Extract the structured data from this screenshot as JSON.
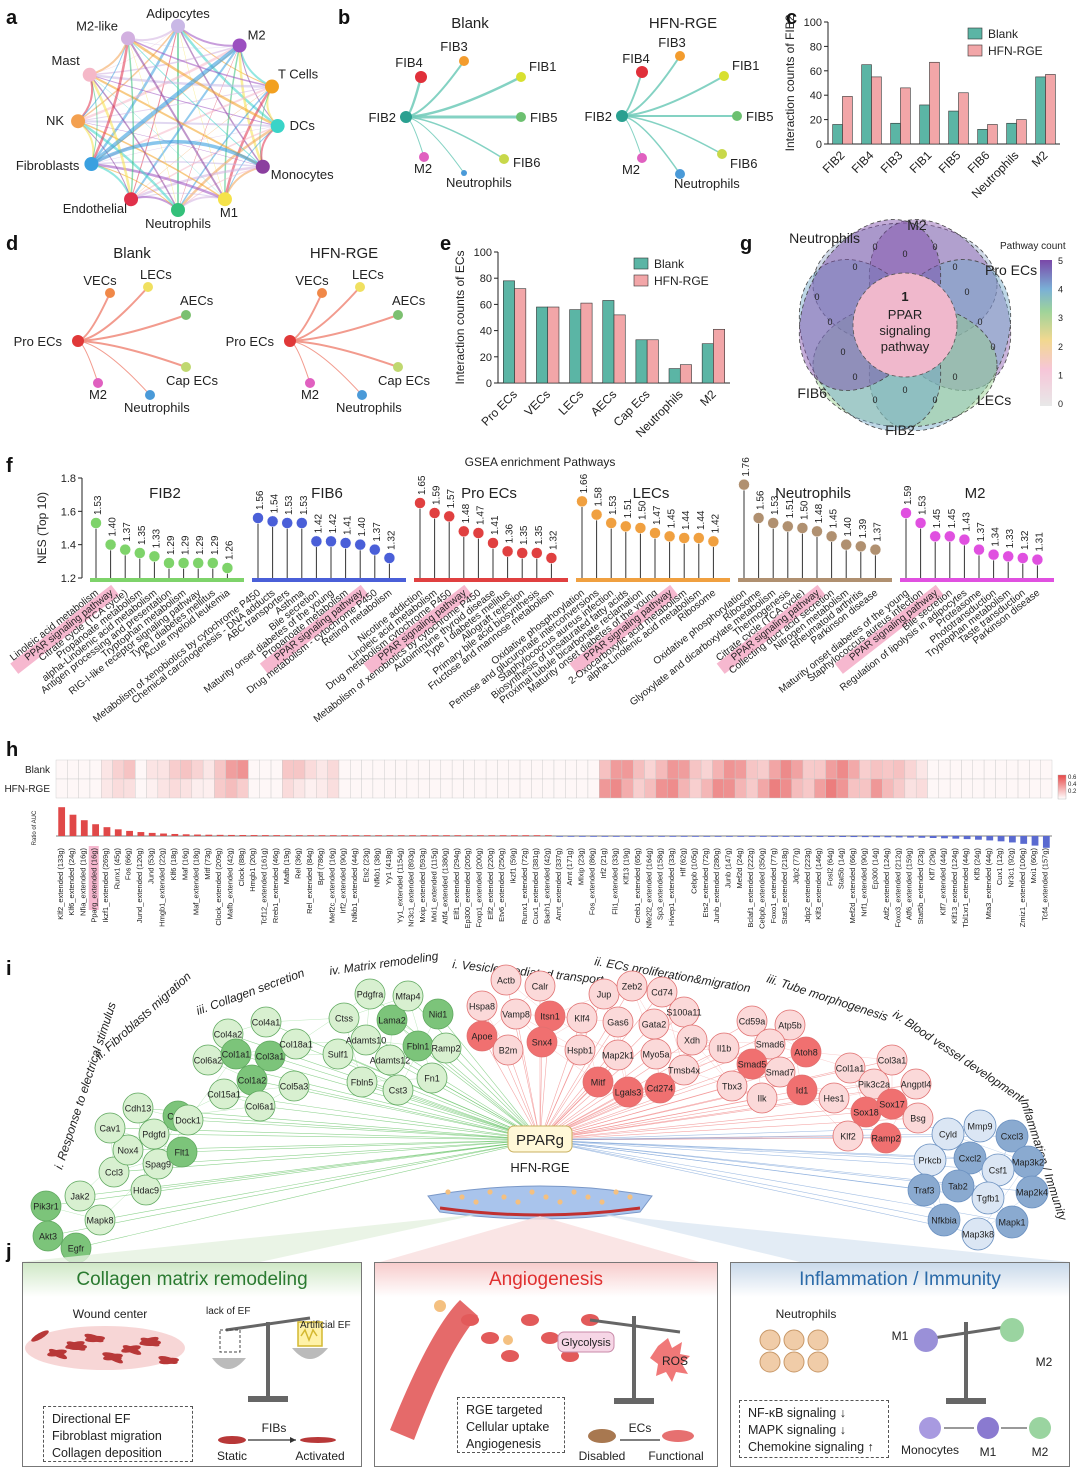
{
  "panels": {
    "a": "a",
    "b": "b",
    "c": "c",
    "d": "d",
    "e": "e",
    "f": "f",
    "g": "g",
    "h": "h",
    "i": "i",
    "j": "j"
  },
  "panel_a": {
    "nodes": [
      "Adipocytes",
      "M2",
      "T Cells",
      "DCs",
      "Monocytes",
      "M1",
      "Neutrophils",
      "Endothelial",
      "Fibroblasts",
      "NK",
      "Mast",
      "M2-like"
    ],
    "colors": [
      "#c9b8e6",
      "#9b4fc0",
      "#f2a020",
      "#3ad4c8",
      "#8b3f9f",
      "#f5e24a",
      "#34c07a",
      "#e0304a",
      "#3aa0e0",
      "#f3a050",
      "#f5b8c8",
      "#d2b0e0"
    ]
  },
  "panel_b": {
    "blank_title": "Blank",
    "hfn_title": "HFN-RGE",
    "source": "FIB2",
    "targets": [
      "FIB3",
      "FIB4",
      "FIB1",
      "FIB5",
      "FIB6",
      "M2",
      "Neutrophils"
    ],
    "target_colors": [
      "#f39c2e",
      "#e0303a",
      "#d8e030",
      "#6cc070",
      "#c8d84a",
      "#e060c0",
      "#4a9ad8"
    ]
  },
  "panel_d": {
    "blank_title": "Blank",
    "hfn_title": "HFN-RGE",
    "source": "Pro ECs",
    "targets": [
      "VECs",
      "LECs",
      "AECs",
      "Cap ECs",
      "M2",
      "Neutrophils"
    ],
    "target_colors": [
      "#f08848",
      "#f0e060",
      "#7cc070",
      "#c0d870",
      "#e060c0",
      "#4a9ad8"
    ]
  },
  "chart_data": [
    {
      "id": "c",
      "type": "bar",
      "ylabel": "Interaction counts of FIB2",
      "ylim": [
        0,
        100
      ],
      "yticks": [
        0,
        20,
        40,
        60,
        80,
        100
      ],
      "categories": [
        "FIB2",
        "FIB4",
        "FIB3",
        "FIB1",
        "FIB5",
        "FIB6",
        "Neutrophils",
        "M2"
      ],
      "series": [
        {
          "name": "Blank",
          "color": "#5bb5a5",
          "values": [
            16,
            65,
            17,
            32,
            27,
            12,
            17,
            55
          ]
        },
        {
          "name": "HFN-RGE",
          "color": "#f2a6a8",
          "values": [
            39,
            55,
            46,
            67,
            42,
            16,
            20,
            57
          ]
        }
      ],
      "legend": "top-right"
    },
    {
      "id": "e",
      "type": "bar",
      "ylabel": "Interaction counts of ECs",
      "ylim": [
        0,
        100
      ],
      "yticks": [
        0,
        20,
        40,
        60,
        80,
        100
      ],
      "categories": [
        "Pro ECs",
        "VECs",
        "LECs",
        "AECs",
        "Cap Ecs",
        "Neutrophils",
        "M2"
      ],
      "series": [
        {
          "name": "Blank",
          "color": "#5bb5a5",
          "values": [
            78,
            58,
            56,
            63,
            33,
            11,
            30
          ]
        },
        {
          "name": "HFN-RGE",
          "color": "#f2a6a8",
          "values": [
            72,
            58,
            61,
            52,
            33,
            14,
            41
          ]
        }
      ],
      "legend": "top-right"
    },
    {
      "id": "f",
      "type": "lollipop",
      "title": "GSEA enrichment Pathways",
      "ylabel": "NES (Top 10)",
      "ylim": [
        1.2,
        1.8
      ],
      "yticks": [
        "1.2",
        "1.4",
        "1.6",
        "1.8"
      ],
      "groups": [
        {
          "name": "FIB2",
          "color": "#7ed36a",
          "values": [
            1.53,
            1.4,
            1.37,
            1.35,
            1.33,
            1.29,
            1.29,
            1.29,
            1.29,
            1.26
          ],
          "pathways": [
            "Linoleic acid metabolism",
            "PPAR signaling pathway",
            "Citrate cycle (TCA cycle)",
            "Propanoate metabolism",
            "alpha-Linolenic acid metabolism",
            "Antigen processing and presentation",
            "Tryptophan metabolism",
            "RIG-I-like receptor signaling pathway",
            "Type I diabetes mellitus",
            "Acute myeloid leukemia"
          ]
        },
        {
          "name": "FIB6",
          "color": "#4a5fd8",
          "values": [
            1.56,
            1.54,
            1.53,
            1.53,
            1.42,
            1.42,
            1.41,
            1.4,
            1.37,
            1.32
          ],
          "pathways": [
            "Metabolism of xenobiotics by cytochrome P450",
            "Chemical carcinogenesis - DNA adducts",
            "ABC transporters",
            "Asthma",
            "Bile secretion",
            "Maturity onset diabetes of the young",
            "Propanoate metabolism",
            "PPAR signaling pathway",
            "Drug metabolism - cytochrome P450",
            "Retinol metabolism"
          ]
        },
        {
          "name": "Pro ECs",
          "color": "#e04040",
          "values": [
            1.65,
            1.59,
            1.57,
            1.48,
            1.47,
            1.41,
            1.36,
            1.35,
            1.35,
            1.32
          ],
          "pathways": [
            "Nicotine addiction",
            "Linoleic acid metabolism",
            "Drug metabolism cytochrome P450",
            "PPAR signaling pathway",
            "Metabolism of xenobiotics by cytochrome P450",
            "Autoimmune thyroid disease",
            "Type I diabetes mellitus",
            "Allograft rejection",
            "Primary bile acid biosynthesis",
            "Fructose and mannose metabolism"
          ]
        },
        {
          "name": "LECs",
          "color": "#f0a040",
          "values": [
            1.66,
            1.58,
            1.53,
            1.51,
            1.5,
            1.47,
            1.45,
            1.44,
            1.44,
            1.42
          ],
          "pathways": [
            "Oxidative phosphorylation",
            "Pentose and glucuronate interconversions",
            "Staphylococcus aureus infection",
            "Biosynthesis of unsaturated fatty acids",
            "Proximal tubule bicarbonate reclamation",
            "Maturity onset diabetes of the young",
            "PPAR signaling pathway",
            "2-Oxocarboxylic acid metabolism",
            "alpha-Linolenic acid metabolism",
            "Ribosome"
          ]
        },
        {
          "name": "Neutrophils",
          "color": "#b09070",
          "values": [
            1.76,
            1.56,
            1.53,
            1.51,
            1.5,
            1.48,
            1.45,
            1.4,
            1.39,
            1.37
          ],
          "pathways": [
            "Oxidative phosphorylation",
            "Ribosome",
            "Glyoxylate and dicarboxylate metabolism",
            "Thermogenesis",
            "Citrate cycle (TCA cycle)",
            "PPAR signaling pathway",
            "Collecting duct acid secretion",
            "Nitrogen metabolism",
            "Rheumatoid arthritis",
            "Parkinson disease"
          ]
        },
        {
          "name": "M2",
          "color": "#e050e0",
          "values": [
            1.59,
            1.53,
            1.45,
            1.45,
            1.43,
            1.37,
            1.34,
            1.33,
            1.32,
            1.31
          ],
          "pathways": [
            "Maturity onset diabetes of the young",
            "Staphylococcus aureus infection",
            "PPAR signaling pathway",
            "Bile secretion",
            "Regulation of lipolysis in adipocytes",
            "Proteasome",
            "Phototransduction",
            "Tryptophan metabolism",
            "Taste transduction",
            "Parkinson disease"
          ]
        }
      ]
    },
    {
      "id": "h",
      "type": "heatmap",
      "rows": [
        "Blank",
        "HFN-RGE"
      ],
      "bar_ylabel": "Ratio of AUC",
      "legend_ticks": [
        "0.6",
        "0.4",
        "0.2"
      ],
      "columns": [
        "Klf2_extended (133g)",
        "Klf6_extended (24g)",
        "Nfia_extended (16g)",
        "Pparg_extended (16g)",
        "Ikzf1_extended (269g)",
        "Runx1 (45g)",
        "Fos (66g)",
        "Jund_extended (120g)",
        "Jund (53g)",
        "Hmgb1_extended (22g)",
        "Klf6 (18g)",
        "Maf (16g)",
        "Maf_extended (18g)",
        "Mitf (73g)",
        "Clock_extended (209g)",
        "Mafb_extended (42g)",
        "Clock (88g)",
        "Hmgb1 (20g)",
        "Tcf12_extended (161g)",
        "Rreb1_extended (46g)",
        "Mafb (19g)",
        "Rel (36g)",
        "Rel_extended (84g)",
        "Bptf (786g)",
        "Mef2c_extended (16g)",
        "Irf2_extended (90g)",
        "Nfkb1_extended (44g)",
        "Ets2 (23g)",
        "Nfkb1 (38g)",
        "Yy1 (418g)",
        "Yy1_extended (1154g)",
        "Nr3c1_extended (893g)",
        "Mxip_extended (593g)",
        "Mxi1_extended (115g)",
        "Atf4_extended (1380g)",
        "Elf1_extended (294g)",
        "Ep300_extended (205g)",
        "Foxp1_extended (200g)",
        "Elf2_extended (220g)",
        "Etv6_extended (250g)",
        "Ikzf1 (59g)",
        "Runx1_extended (72g)",
        "Cux1_extended (381g)",
        "Bach1_extended (42g)",
        "Arnt_extended (337g)",
        "Arnt (171g)",
        "Mlxip (23g)",
        "Fos_extended (86g)",
        "Irf2 (21g)",
        "Fli1_extended (33g)",
        "Klf13 (19g)",
        "Creb1_extended (65g)",
        "Nfe2l2_extended (164g)",
        "Sp3_extended (158g)",
        "Hivep1_extended (33g)",
        "Hlf (62g)",
        "Cebpb (105g)",
        "Ets2_extended (72g)",
        "Junb_extended (280g)",
        "Junb (147g)",
        "Mef2d (24g)",
        "Bclaf1_extended (222g)",
        "Cebpb_extended (350g)",
        "Foxo1_extended (77g)",
        "Stat3_extended (218g)",
        "Jdp2 (77g)",
        "Jdp2_extended (223g)",
        "Klf3_extended (146g)",
        "Fosl2 (64g)",
        "Stat5b (14g)",
        "Mef2d_extended (66g)",
        "Nrf1_extended (90g)",
        "Ep300 (14g)",
        "Atf2_extended (124g)",
        "Foxo3_extended (212g)",
        "Atf6_extended (159g)",
        "Stat5b_extended (23g)",
        "Klf7 (29g)",
        "Klf7_extended (44g)",
        "Klf13_extended (124g)",
        "Tbl1xr1_extended (44g)",
        "Klf3 (24g)",
        "Mta3_extended (44g)",
        "Cux1 (12g)",
        "Nr3c1 (92g)",
        "Zmiz1_extended (106g)",
        "Mxi1 (60g)",
        "Tcf4_extended (157g)"
      ],
      "highlight": "Pparg_extended (16g)"
    }
  ],
  "panel_g": {
    "sets": [
      "M2",
      "Pro ECs",
      "LECs",
      "FIB2",
      "FIB6",
      "Neutrophils"
    ],
    "colors": [
      "#9aaecc",
      "#8a58b0",
      "#6fa6c8",
      "#92cf8a",
      "#6fa6c8",
      "#7a48a8"
    ],
    "center_count": "1",
    "center_text": [
      "PPAR",
      "signaling",
      "pathway"
    ],
    "legend_title": "Pathway count",
    "legend_ticks": [
      "5",
      "4",
      "3",
      "2",
      "1",
      "0"
    ]
  },
  "panel_i": {
    "center": "PPARg",
    "material": "HFN-RGE",
    "categories_green": [
      "i. Response to electrical stimulus",
      "ii. Fibroblasts migration",
      "iii. Collagen secretion",
      "iv. Matrix remodeling"
    ],
    "categories_red": [
      "i. Vesicle-mediated transport",
      "ii. ECs proliferation&migration",
      "iii. Tube morphogenesis",
      "iv. Blood vessel development"
    ],
    "category_blue": "Inflammation / Immunity",
    "green_genes": [
      "Pik3r1",
      "Akt3",
      "Egfr",
      "Jak2",
      "Mapk8",
      "Ccl3",
      "Hdac9",
      "Nox4",
      "Spag9",
      "Cav1",
      "Cdh13",
      "Pdgfd",
      "Cdh5",
      "Flt1",
      "Dock1",
      "Col6a2",
      "Col15a1",
      "Col4a2",
      "Col1a1",
      "Col1a2",
      "Col6a1",
      "Col4a1",
      "Col3a1",
      "Col18a1",
      "Col5a3",
      "Ctss",
      "Sulf1",
      "Adamts10",
      "Adamts12",
      "Fbln5",
      "Cst3",
      "Pdgfra",
      "Lama2",
      "Mfap4",
      "Nid1",
      "Fbln1",
      "Ramp2",
      "Fn1"
    ],
    "red_genes": [
      "Actb",
      "Calr",
      "Hspa8",
      "Vamp8",
      "Itsn1",
      "Apoe",
      "B2m",
      "Snx4",
      "Jup",
      "Zeb2",
      "Cd74",
      "Klf4",
      "Gas6",
      "Gata2",
      "S100a11",
      "Hspb1",
      "Map2k1",
      "Myo5a",
      "Xdh",
      "Mitf",
      "Lgals3",
      "Cd274",
      "Tmsb4x",
      "Cd59a",
      "Atp5b",
      "Il1b",
      "Smad6",
      "Atoh8",
      "Smad5",
      "Smad7",
      "Tbx3",
      "Ilk",
      "Id1",
      "Hes1",
      "Col1a1",
      "Col3a1",
      "Pik3c2a",
      "Angptl4",
      "Sox18",
      "Sox17",
      "Klf2",
      "Ramp2",
      "Bsg"
    ],
    "blue_genes": [
      "Mmp9",
      "Cyld",
      "Cxcl3",
      "Prkcb",
      "Cxcl2",
      "Map3k2",
      "Csf1",
      "Traf3",
      "Tab2",
      "Map2k4",
      "Tgfb1",
      "Nfkbia",
      "Mapk1",
      "Map3k8"
    ]
  },
  "panel_j": {
    "box1": {
      "title": "Collagen matrix remodeling",
      "wound_label": "Wound center",
      "lack_label": "lack of EF",
      "artificial_label": "Artificial EF",
      "fibs_label": "FIBs",
      "static_label": "Static",
      "activated_label": "Activated",
      "notes": [
        "Directional EF",
        "Fibroblast migration",
        "Collagen deposition"
      ]
    },
    "box2": {
      "title": "Angiogenesis",
      "glycolysis": "Glycolysis",
      "ros": "ROS",
      "ecs_label": "ECs",
      "disabled_label": "Disabled",
      "functional_label": "Functional",
      "notes": [
        "RGE targeted",
        "Cellular uptake",
        "Angiogenesis"
      ]
    },
    "box3": {
      "title": "Inflammation / Immunity",
      "neutrophils_label": "Neutrophils",
      "m1_label": "M1",
      "m2_label": "M2",
      "monocytes_label": "Monocytes",
      "m1_bottom": "M1",
      "m2_bottom": "M2",
      "notes": [
        "NF-κB signaling ↓",
        "MAPK signaling ↓",
        "Chemokine signaling ↑"
      ]
    }
  }
}
